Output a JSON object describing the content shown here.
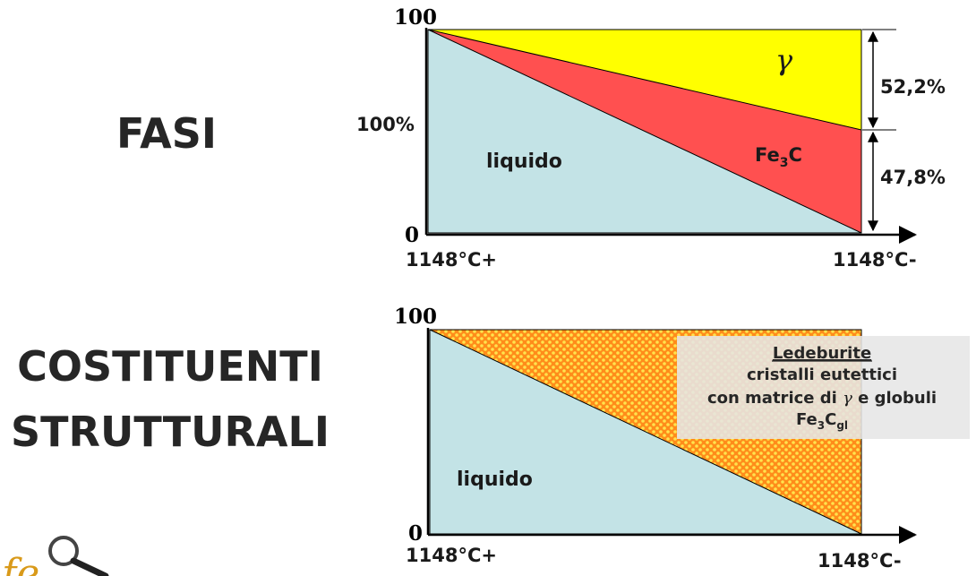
{
  "left_labels": {
    "fasi": "FASI",
    "costituenti_line1": "COSTITUENTI",
    "costituenti_line2": "STRUTTURALI"
  },
  "top_diagram": {
    "y_top": "100",
    "y_mid": "100%",
    "y_zero": "0",
    "x_left": "1148°C+",
    "x_right": "1148°C-",
    "gamma_label": "γ",
    "fe3c_label": "Fe",
    "fe3c_sub": "3",
    "fe3c_suffix": "C",
    "liquid_label": "liquido",
    "pct_gamma": "52,2%",
    "pct_fe3c": "47,8%",
    "colors": {
      "liquid": "#c3e3e6",
      "gamma": "#ffff00",
      "fe3c": "#ff5050"
    }
  },
  "bottom_diagram": {
    "y_top": "100",
    "y_zero": "0",
    "x_left": "1148°C+",
    "x_right": "1148°C-",
    "liquid_label": "liquido",
    "ledeburite_title": "Ledeburite",
    "ledeburite_line2": "cristalli eutettici",
    "ledeburite_line3_a": "con matrice di ",
    "ledeburite_line3_gamma": "γ",
    "ledeburite_line3_b": " e globuli",
    "ledeburite_line4_a": "Fe",
    "ledeburite_line4_sub1": "3",
    "ledeburite_line4_b": "C",
    "ledeburite_line4_sub2": "gl",
    "colors": {
      "liquid": "#c3e3e6",
      "ledeburite_base": "#ff8c1a",
      "ledeburite_dot": "#ffe34d",
      "callout_box": "#e6e6e6"
    }
  },
  "logo": {
    "text": "fe"
  }
}
